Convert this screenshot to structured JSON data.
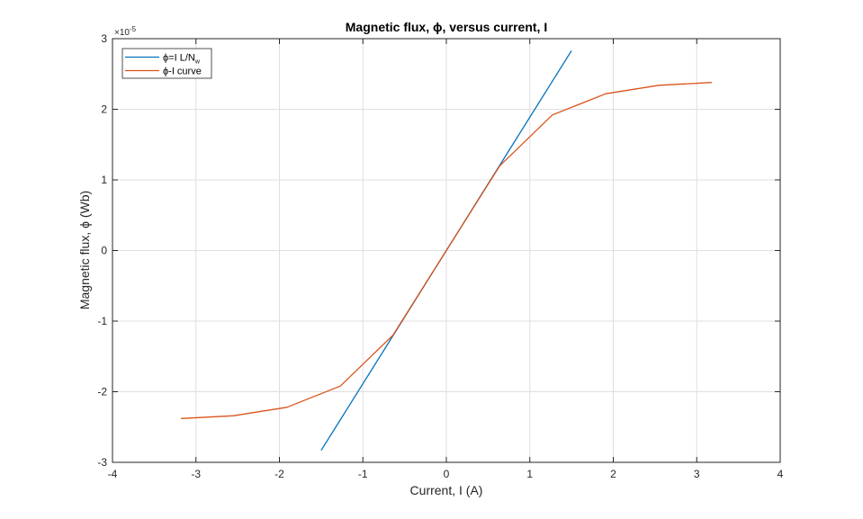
{
  "chart_data": {
    "type": "line",
    "title": "Magnetic flux, ϕ, versus current, I",
    "xlabel": "Current, I (A)",
    "ylabel": "Magnetic flux, ϕ  (Wb)",
    "xlim": [
      -4,
      4
    ],
    "ylim": [
      -3,
      3
    ],
    "y_scale_multiplier": "×10",
    "y_scale_exponent": "-5",
    "x_ticks": [
      -4,
      -3,
      -2,
      -1,
      0,
      1,
      2,
      3,
      4
    ],
    "x_tick_labels": [
      "-4",
      "-3",
      "-2",
      "-1",
      "0",
      "1",
      "2",
      "3",
      "4"
    ],
    "y_ticks": [
      -3,
      -2,
      -1,
      0,
      1,
      2,
      3
    ],
    "y_tick_labels": [
      "-3",
      "-2",
      "-1",
      "0",
      "1",
      "2",
      "3"
    ],
    "grid": true,
    "legend_position": "top-left",
    "series": [
      {
        "name_prefix": "ϕ=I L/N",
        "name_subscript": "w",
        "color": "#0072BD",
        "x": [
          -1.5,
          1.5
        ],
        "y": [
          -2.83,
          2.83
        ]
      },
      {
        "name": "ϕ-I curve",
        "color": "#D95319",
        "x": [
          -3.18,
          -2.55,
          -1.91,
          -1.27,
          -0.64,
          0,
          0.64,
          1.27,
          1.91,
          2.55,
          3.18
        ],
        "y": [
          -2.38,
          -2.34,
          -2.22,
          -1.92,
          -1.2,
          0,
          1.2,
          1.92,
          2.22,
          2.34,
          2.38
        ]
      }
    ]
  }
}
